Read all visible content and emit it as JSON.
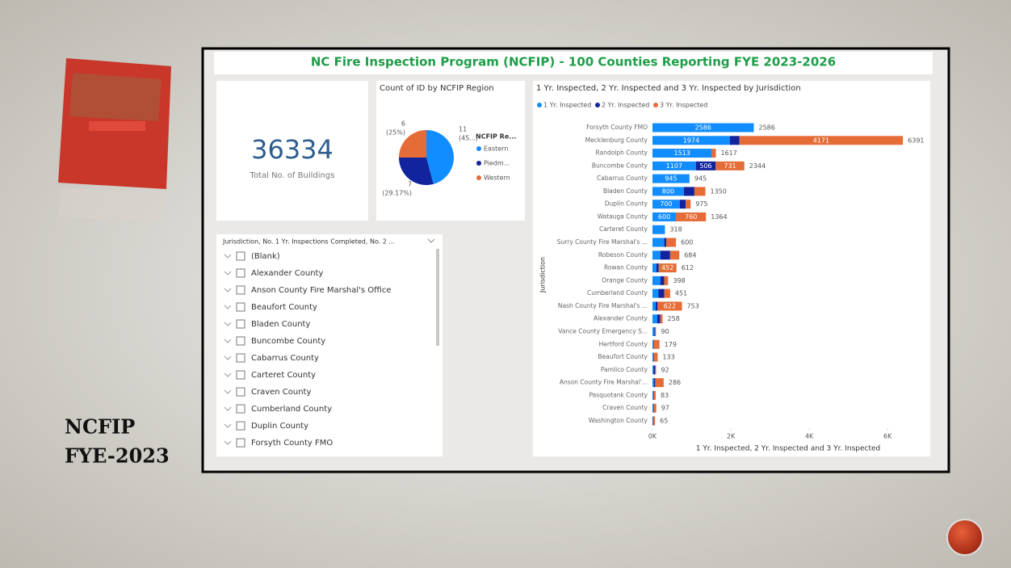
{
  "slide": {
    "title": "NCFIP",
    "subtitle": "FYE-2023"
  },
  "dashboard": {
    "title": "NC Fire Inspection Program (NCFIP) - 100 Counties Reporting FYE 2023-2026",
    "card": {
      "value": 36334,
      "label": "Total No. of Buildings"
    },
    "pie_chart": {
      "type": "pie",
      "title": "Count of ID by NCFIP Region",
      "legend_title": "NCFIP Re...",
      "categories": [
        "Eastern",
        "Piedm...",
        "Western"
      ],
      "values": [
        11,
        7,
        6
      ],
      "percent_labels": [
        "(45...)",
        "(29.17%)",
        "(25%)"
      ],
      "colors": [
        "#118DFF",
        "#12239E",
        "#E66C37"
      ]
    },
    "slicer": {
      "header": "Jurisdiction, No. 1 Yr. Inspections Completed, No. 2 ...",
      "items": [
        "(Blank)",
        "Alexander County",
        "Anson County Fire Marshal's Office",
        "Beaufort County",
        "Bladen County",
        "Buncombe County",
        "Cabarrus County",
        "Carteret County",
        "Craven County",
        "Cumberland County",
        "Duplin County",
        "Forsyth County FMO"
      ]
    },
    "bar_chart": {
      "type": "bar",
      "title": "1 Yr. Inspected, 2 Yr. Inspected and 3 Yr. Inspected by Jurisdiction",
      "y_label": "Jurisdiction",
      "x_label": "1 Yr. Inspected, 2 Yr. Inspected and 3 Yr. Inspected",
      "categories": [
        "Forsyth County FMO",
        "Mecklenburg County",
        "Randolph County",
        "Buncombe County",
        "Cabarrus County",
        "Bladen County",
        "Duplin County",
        "Watauga County",
        "Carteret County",
        "Surry County Fire Marshal's ...",
        "Robeson County",
        "Rowan County",
        "Orange County",
        "Cumberland County",
        "Nash County Fire Marshal's ...",
        "Alexander County",
        "Vance County Emergency S...",
        "Hertford County",
        "Beaufort County",
        "Pamlico County",
        "Anson County Fire Marshal'...",
        "Pasquotank County",
        "Craven County",
        "Washington County"
      ],
      "series": [
        {
          "name": "1 Yr. Inspected",
          "color": "#118DFF",
          "values": [
            2586,
            1974,
            1513,
            1107,
            945,
            800,
            700,
            600,
            318,
            300,
            200,
            100,
            200,
            150,
            80,
            120,
            50,
            20,
            20,
            30,
            40,
            20,
            20,
            10
          ]
        },
        {
          "name": "2 Yr. Inspected",
          "color": "#12239E",
          "values": [
            0,
            246,
            0,
            506,
            0,
            270,
            150,
            4,
            0,
            50,
            250,
            60,
            100,
            150,
            51,
            80,
            20,
            10,
            13,
            40,
            30,
            10,
            10,
            10
          ]
        },
        {
          "name": "3 Yr. Inspected",
          "color": "#E66C37",
          "values": [
            0,
            4171,
            104,
            731,
            0,
            280,
            125,
            760,
            0,
            250,
            234,
            452,
            98,
            151,
            622,
            58,
            20,
            149,
            100,
            22,
            216,
            53,
            67,
            45
          ]
        }
      ],
      "totals": [
        2586,
        6391,
        1617,
        2344,
        945,
        1350,
        975,
        1364,
        318,
        600,
        684,
        612,
        398,
        451,
        753,
        258,
        90,
        179,
        133,
        92,
        286,
        83,
        97,
        65
      ],
      "xlim": [
        0,
        6800
      ],
      "xticks": [
        {
          "value": 0,
          "label": "0K"
        },
        {
          "value": 2000,
          "label": "2K"
        },
        {
          "value": 4000,
          "label": "4K"
        },
        {
          "value": 6000,
          "label": "6K"
        }
      ]
    }
  }
}
